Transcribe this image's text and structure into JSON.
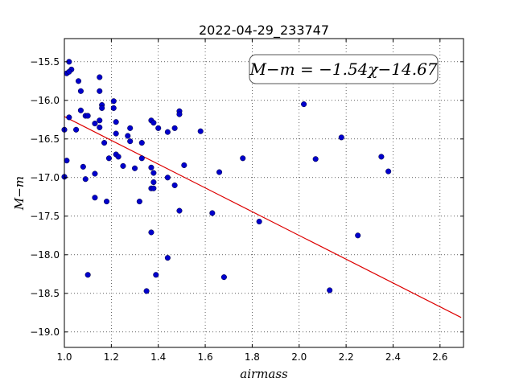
{
  "chart_data": {
    "type": "scatter",
    "title": "2022-04-29_233747",
    "xlabel": "airmass",
    "ylabel": "M−m",
    "xlim": [
      1.0,
      2.7
    ],
    "ylim": [
      -19.2,
      -15.2
    ],
    "xticks": [
      1.0,
      1.2,
      1.4,
      1.6,
      1.8,
      2.0,
      2.2,
      2.4,
      2.6
    ],
    "xtick_labels": [
      "1.0",
      "1.2",
      "1.4",
      "1.6",
      "1.8",
      "2.0",
      "2.2",
      "2.4",
      "2.6"
    ],
    "yticks": [
      -15.5,
      -16.0,
      -16.5,
      -17.0,
      -17.5,
      -18.0,
      -18.5,
      -19.0
    ],
    "ytick_labels": [
      "−15.5",
      "−16.0",
      "−16.5",
      "−17.0",
      "−17.5",
      "−18.0",
      "−18.5",
      "−19.0"
    ],
    "grid": true,
    "annotation": "M−m = −1.54χ−14.67",
    "fit_line": {
      "slope": -1.54,
      "intercept": -14.67,
      "color": "#dd0000"
    },
    "point_color": "#0000cc",
    "points": [
      [
        1.02,
        -15.5
      ],
      [
        1.03,
        -15.6
      ],
      [
        1.01,
        -15.65
      ],
      [
        1.02,
        -15.63
      ],
      [
        1.06,
        -15.75
      ],
      [
        1.07,
        -15.88
      ],
      [
        1.07,
        -16.13
      ],
      [
        1.09,
        -16.2
      ],
      [
        1.1,
        -16.2
      ],
      [
        1.02,
        -16.22
      ],
      [
        1.05,
        -16.38
      ],
      [
        1.0,
        -16.38
      ],
      [
        1.01,
        -16.78
      ],
      [
        1.0,
        -16.99
      ],
      [
        1.08,
        -16.86
      ],
      [
        1.09,
        -17.02
      ],
      [
        1.13,
        -16.95
      ],
      [
        1.13,
        -17.26
      ],
      [
        1.18,
        -17.31
      ],
      [
        1.1,
        -18.26
      ],
      [
        1.15,
        -15.7
      ],
      [
        1.15,
        -15.88
      ],
      [
        1.16,
        -16.06
      ],
      [
        1.16,
        -16.1
      ],
      [
        1.13,
        -16.3
      ],
      [
        1.15,
        -16.26
      ],
      [
        1.15,
        -16.35
      ],
      [
        1.17,
        -16.55
      ],
      [
        1.19,
        -16.75
      ],
      [
        1.21,
        -16.01
      ],
      [
        1.21,
        -16.1
      ],
      [
        1.22,
        -16.28
      ],
      [
        1.22,
        -16.43
      ],
      [
        1.22,
        -16.7
      ],
      [
        1.23,
        -16.73
      ],
      [
        1.25,
        -16.85
      ],
      [
        1.28,
        -16.36
      ],
      [
        1.27,
        -16.46
      ],
      [
        1.28,
        -16.53
      ],
      [
        1.3,
        -16.88
      ],
      [
        1.33,
        -16.55
      ],
      [
        1.33,
        -16.75
      ],
      [
        1.32,
        -17.31
      ],
      [
        1.35,
        -18.47
      ],
      [
        1.37,
        -16.26
      ],
      [
        1.38,
        -16.29
      ],
      [
        1.37,
        -16.87
      ],
      [
        1.38,
        -16.94
      ],
      [
        1.38,
        -17.06
      ],
      [
        1.37,
        -17.14
      ],
      [
        1.38,
        -17.14
      ],
      [
        1.37,
        -17.71
      ],
      [
        1.39,
        -18.26
      ],
      [
        1.4,
        -16.36
      ],
      [
        1.44,
        -16.41
      ],
      [
        1.47,
        -16.36
      ],
      [
        1.44,
        -17.0
      ],
      [
        1.47,
        -17.1
      ],
      [
        1.44,
        -18.04
      ],
      [
        1.49,
        -16.14
      ],
      [
        1.49,
        -16.18
      ],
      [
        1.51,
        -16.84
      ],
      [
        1.49,
        -17.43
      ],
      [
        1.58,
        -16.4
      ],
      [
        1.63,
        -17.46
      ],
      [
        1.66,
        -16.93
      ],
      [
        1.68,
        -18.29
      ],
      [
        1.76,
        -16.75
      ],
      [
        1.83,
        -17.57
      ],
      [
        2.02,
        -16.05
      ],
      [
        2.07,
        -16.76
      ],
      [
        2.13,
        -18.46
      ],
      [
        2.18,
        -16.48
      ],
      [
        2.25,
        -17.75
      ],
      [
        2.35,
        -16.73
      ],
      [
        2.38,
        -16.92
      ]
    ]
  }
}
